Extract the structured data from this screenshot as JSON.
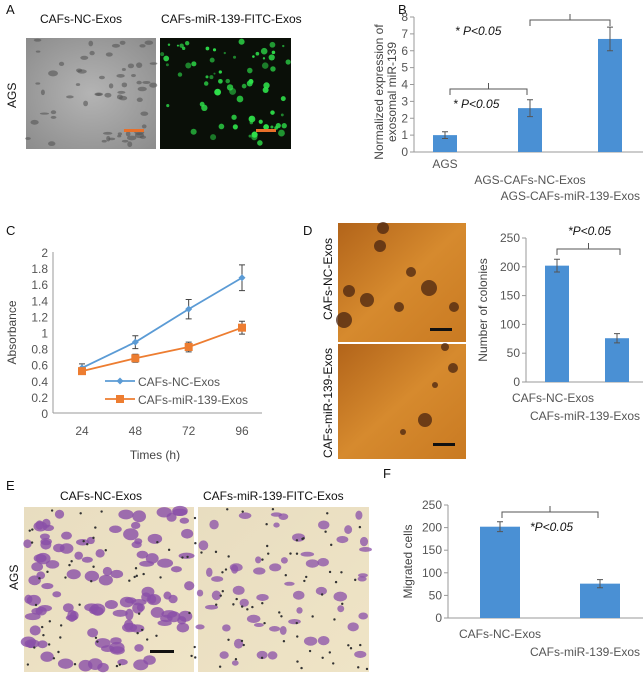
{
  "panels": {
    "A": {
      "letter": "A",
      "side_label": "AGS",
      "image_labels": [
        "CAFs-NC-Exos",
        "CAFs-miR-139-FITC-Exos"
      ]
    },
    "B": {
      "letter": "B"
    },
    "C": {
      "letter": "C"
    },
    "D": {
      "letter": "D",
      "image_labels": [
        "CAFs-NC-Exos",
        "CAFs-miR-139-Exos"
      ]
    },
    "E": {
      "letter": "E",
      "side_label": "AGS",
      "image_labels": [
        "CAFs-NC-Exos",
        "CAFs-miR-139-FITC-Exos"
      ]
    },
    "F": {
      "letter": "F"
    }
  },
  "colors": {
    "bar": "#4a90d4",
    "nc_line": "#5b9bd5",
    "mir_line": "#ed7d31",
    "fluorescence": "#2ee04a",
    "colony_bg": "#c9761e",
    "crystal_violet": "#8a4fa8"
  },
  "chart_data": [
    {
      "id": "B",
      "type": "bar",
      "ylabel_lines": [
        "Normalized expression of",
        "exosomal miR-139"
      ],
      "categories": [
        "AGS",
        "AGS-CAFs-NC-Exos",
        "AGS-CAFs-miR-139-Exos"
      ],
      "values": [
        1.0,
        2.6,
        6.7
      ],
      "errors": [
        0.2,
        0.5,
        0.7
      ],
      "ylim": [
        0,
        8
      ],
      "yticks": [
        0,
        1,
        2,
        3,
        4,
        5,
        6,
        7,
        8
      ],
      "annotations": [
        {
          "text": "* P<0.05",
          "between": [
            0,
            1
          ]
        },
        {
          "text": "* P<0.05",
          "between": [
            1,
            2
          ]
        }
      ]
    },
    {
      "id": "C",
      "type": "line",
      "xlabel": "Times  (h)",
      "ylabel": "Absorbance",
      "x": [
        24,
        48,
        72,
        96
      ],
      "ylim": [
        0,
        2
      ],
      "yticks": [
        "0",
        "0.2",
        "0.4",
        "0.6",
        "0.8",
        "1",
        "1.2",
        "1.4",
        "1.6",
        "1.8",
        "2"
      ],
      "series": [
        {
          "name": "CAFs-NC-Exos",
          "values": [
            0.56,
            0.88,
            1.29,
            1.68
          ],
          "errors": [
            0.05,
            0.08,
            0.12,
            0.16
          ],
          "marker": "diamond"
        },
        {
          "name": "CAFs-miR-139-Exos",
          "values": [
            0.52,
            0.68,
            0.82,
            1.06
          ],
          "errors": [
            0.03,
            0.05,
            0.06,
            0.08
          ],
          "marker": "square"
        }
      ],
      "legend": "bottom-right"
    },
    {
      "id": "D",
      "type": "bar",
      "ylabel": "Number  of colonies",
      "categories": [
        "CAFs-NC-Exos",
        "CAFs-miR-139-Exos"
      ],
      "values": [
        202,
        76
      ],
      "errors": [
        11,
        8
      ],
      "ylim": [
        0,
        250
      ],
      "yticks": [
        0,
        50,
        100,
        150,
        200,
        250
      ],
      "annotations": [
        {
          "text": "*P<0.05",
          "between": [
            0,
            1
          ]
        }
      ]
    },
    {
      "id": "F",
      "type": "bar",
      "ylabel": "Migrated cells",
      "categories": [
        "CAFs-NC-Exos",
        "CAFs-miR-139-Exos"
      ],
      "values": [
        202,
        76
      ],
      "errors": [
        11,
        9
      ],
      "ylim": [
        0,
        250
      ],
      "yticks": [
        0,
        50,
        100,
        150,
        200,
        250
      ],
      "annotations": [
        {
          "text": "*P<0.05",
          "between": [
            0,
            1
          ]
        }
      ]
    }
  ]
}
